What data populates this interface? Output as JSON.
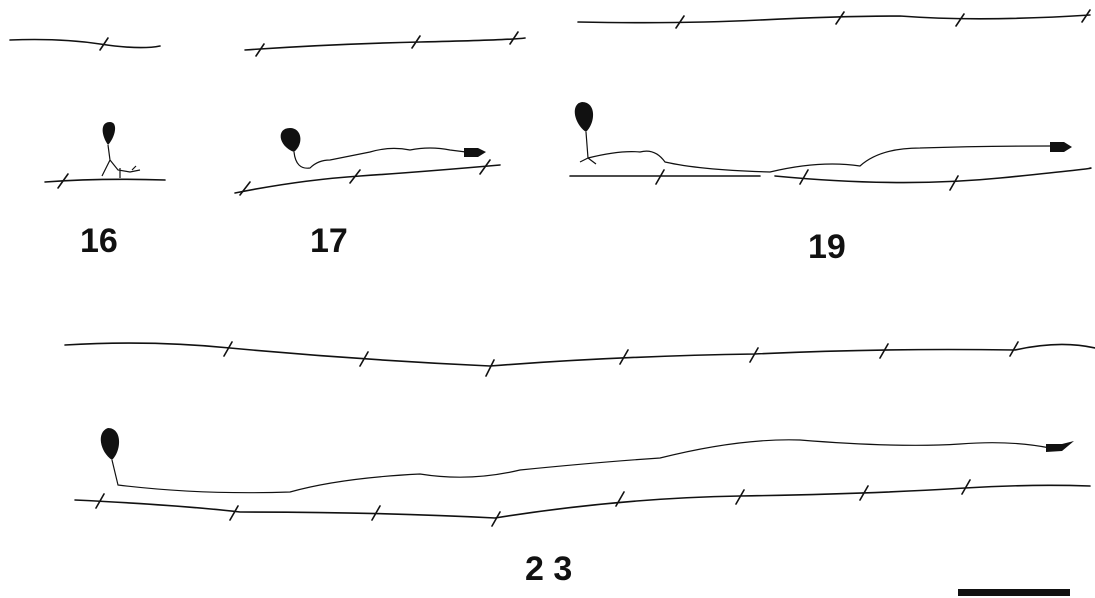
{
  "panels": [
    {
      "label": "16"
    },
    {
      "label": "17"
    },
    {
      "label": "19"
    },
    {
      "label": "2 3"
    }
  ]
}
